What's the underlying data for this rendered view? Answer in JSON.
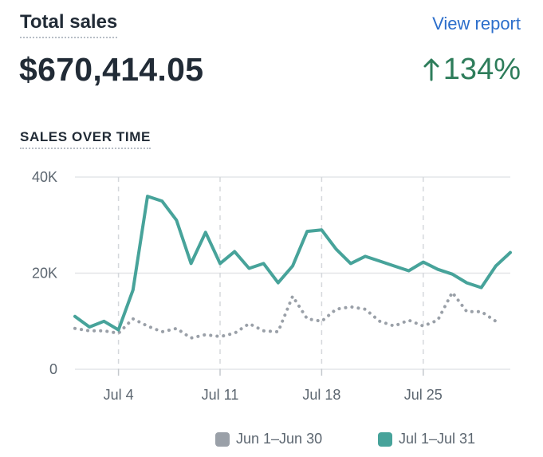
{
  "header": {
    "title": "Total sales",
    "view_report_label": "View report",
    "total_value": "$670,414.05",
    "change_value": "134%"
  },
  "section_title": "SALES OVER TIME",
  "colors": {
    "current": "#47a39a",
    "previous": "#9aa0a8",
    "positive": "#2e7d5b",
    "link": "#2c6ecb"
  },
  "chart_data": {
    "type": "line",
    "title": "SALES OVER TIME",
    "xlabel": "",
    "ylabel": "",
    "ylim": [
      0,
      40000
    ],
    "y_ticks": [
      {
        "value": 0,
        "label": "0"
      },
      {
        "value": 20000,
        "label": "20K"
      },
      {
        "value": 40000,
        "label": "40K"
      }
    ],
    "x_ticks": [
      {
        "day": 4,
        "label": "Jul 4"
      },
      {
        "day": 11,
        "label": "Jul 11"
      },
      {
        "day": 18,
        "label": "Jul 18"
      },
      {
        "day": 25,
        "label": "Jul 25"
      }
    ],
    "x_range": [
      1,
      31
    ],
    "grid": "horizontal solid, vertical dashed at labeled ticks",
    "legend_position": "bottom",
    "series": [
      {
        "name": "Jun 1–Jun 30",
        "style": "dotted",
        "color": "#9aa0a8",
        "x": [
          1,
          2,
          3,
          4,
          5,
          6,
          7,
          8,
          9,
          10,
          11,
          12,
          13,
          14,
          15,
          16,
          17,
          18,
          19,
          20,
          21,
          22,
          23,
          24,
          25,
          26,
          27,
          28,
          29,
          30
        ],
        "values": [
          8500,
          8000,
          8000,
          7500,
          10500,
          9000,
          7800,
          8500,
          6500,
          7200,
          6800,
          7500,
          9500,
          8000,
          7800,
          15200,
          10500,
          10000,
          12500,
          13000,
          12500,
          10000,
          9000,
          10200,
          9000,
          10200,
          16000,
          12000,
          12000,
          10000
        ]
      },
      {
        "name": "Jul 1–Jul 31",
        "style": "solid",
        "color": "#47a39a",
        "x": [
          1,
          2,
          3,
          4,
          5,
          6,
          7,
          8,
          9,
          10,
          11,
          12,
          13,
          14,
          15,
          16,
          17,
          18,
          19,
          20,
          21,
          22,
          23,
          24,
          25,
          26,
          27,
          28,
          29,
          30,
          31
        ],
        "values": [
          11000,
          8800,
          10000,
          8200,
          16500,
          36000,
          35000,
          31000,
          22000,
          28500,
          22000,
          24500,
          21000,
          22000,
          18000,
          21500,
          28700,
          29000,
          25000,
          22000,
          23500,
          22500,
          21500,
          20500,
          22300,
          20800,
          19800,
          18000,
          17000,
          21500,
          24300
        ]
      }
    ]
  }
}
